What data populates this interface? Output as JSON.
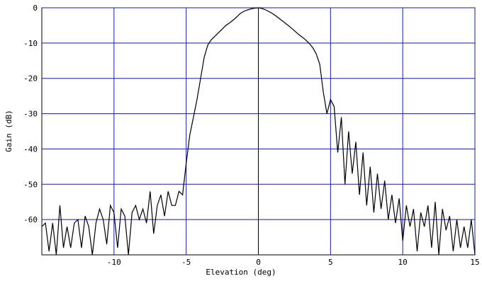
{
  "chart_data": {
    "type": "line",
    "x_label": "Elevation (deg)",
    "y_label": "Gain (dB)",
    "xlim": [
      -15,
      15
    ],
    "ylim": [
      -70,
      0
    ],
    "xticks": [
      -10,
      -5,
      0,
      5,
      10,
      15
    ],
    "yticks": [
      0,
      -10,
      -20,
      -30,
      -40,
      -50,
      -60
    ],
    "grid": true,
    "grid_color": "#1a1aa0",
    "x": [
      -15,
      -14.75,
      -14.5,
      -14.25,
      -14,
      -13.75,
      -13.5,
      -13.25,
      -13,
      -12.75,
      -12.5,
      -12.25,
      -12,
      -11.75,
      -11.5,
      -11.25,
      -11,
      -10.75,
      -10.5,
      -10.25,
      -10,
      -9.75,
      -9.5,
      -9.25,
      -9,
      -8.75,
      -8.5,
      -8.25,
      -8,
      -7.75,
      -7.5,
      -7.25,
      -7,
      -6.75,
      -6.5,
      -6.25,
      -6,
      -5.75,
      -5.5,
      -5.25,
      -5,
      -4.75,
      -4.5,
      -4.25,
      -4,
      -3.75,
      -3.5,
      -3.25,
      -3,
      -2.75,
      -2.5,
      -2.25,
      -2,
      -1.75,
      -1.5,
      -1.25,
      -1,
      -0.75,
      -0.5,
      -0.25,
      0,
      0.25,
      0.5,
      0.75,
      1,
      1.25,
      1.5,
      1.75,
      2,
      2.25,
      2.5,
      2.75,
      3,
      3.25,
      3.5,
      3.75,
      4,
      4.25,
      4.5,
      4.75,
      5,
      5.25,
      5.5,
      5.75,
      6,
      6.25,
      6.5,
      6.75,
      7,
      7.25,
      7.5,
      7.75,
      8,
      8.25,
      8.5,
      8.75,
      9,
      9.25,
      9.5,
      9.75,
      10,
      10.25,
      10.5,
      10.75,
      11,
      11.25,
      11.5,
      11.75,
      12,
      12.25,
      12.5,
      12.75,
      13,
      13.25,
      13.5,
      13.75,
      14,
      14.25,
      14.5,
      14.75,
      15
    ],
    "series": [
      {
        "color": "#000000",
        "values": [
          -62,
          -61,
          -69,
          -61,
          -70,
          -56,
          -68,
          -62,
          -68,
          -61,
          -60,
          -68,
          -59,
          -62,
          -70,
          -61,
          -57,
          -60,
          -67,
          -56,
          -58,
          -68,
          -57,
          -59,
          -70,
          -58,
          -56,
          -60,
          -57,
          -61,
          -52,
          -64,
          -56,
          -53,
          -59,
          -52,
          -56,
          -56,
          -52,
          -53,
          -44,
          -36,
          -31,
          -26,
          -20,
          -14,
          -10.5,
          -9,
          -8,
          -7,
          -6,
          -5,
          -4.3,
          -3.5,
          -2.6,
          -1.6,
          -1,
          -0.6,
          -0.3,
          -0.1,
          0,
          -0.2,
          -0.6,
          -1.1,
          -1.7,
          -2.4,
          -3.2,
          -4,
          -4.8,
          -5.6,
          -6.5,
          -7.4,
          -8.2,
          -9,
          -10,
          -11.2,
          -13,
          -16,
          -24,
          -30,
          -26,
          -28,
          -41,
          -31,
          -50,
          -35,
          -47,
          -38,
          -53,
          -41,
          -56,
          -45,
          -58,
          -47,
          -57,
          -49,
          -60,
          -53,
          -61,
          -54,
          -66,
          -56,
          -62,
          -57,
          -69,
          -58,
          -62,
          -56,
          -68,
          -55,
          -70,
          -57,
          -63,
          -59,
          -69,
          -60,
          -68,
          -62,
          -68,
          -60,
          -70
        ]
      }
    ]
  }
}
